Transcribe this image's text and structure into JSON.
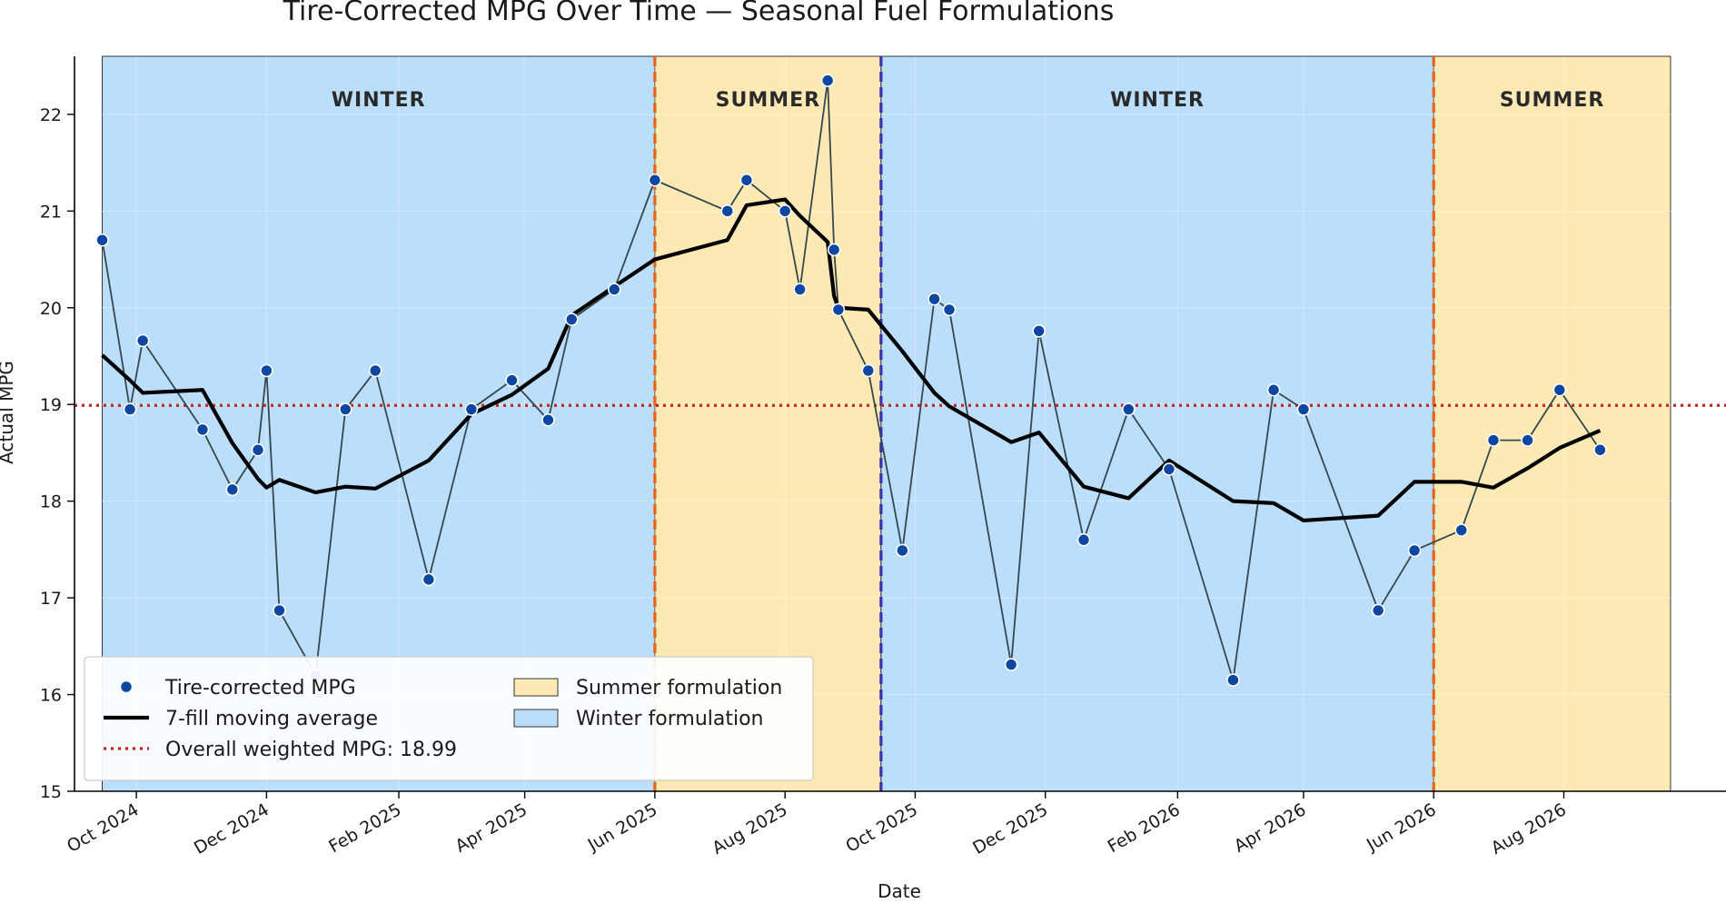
{
  "chart_data": {
    "type": "line",
    "title": "Tire-Corrected MPG Over Time — Seasonal Fuel Formulations",
    "xlabel": "Date",
    "ylabel": "Actual MPG",
    "xlim": [
      "2024-09-02",
      "2026-10-16"
    ],
    "ylim": [
      15,
      22.6
    ],
    "yticks": [
      15,
      16,
      17,
      18,
      19,
      20,
      21,
      22
    ],
    "xticks": [
      {
        "date": "2024-10-01",
        "label": "Oct 2024"
      },
      {
        "date": "2024-12-01",
        "label": "Dec 2024"
      },
      {
        "date": "2025-02-01",
        "label": "Feb 2025"
      },
      {
        "date": "2025-04-01",
        "label": "Apr 2025"
      },
      {
        "date": "2025-06-01",
        "label": "Jun 2025"
      },
      {
        "date": "2025-08-01",
        "label": "Aug 2025"
      },
      {
        "date": "2025-10-01",
        "label": "Oct 2025"
      },
      {
        "date": "2025-12-01",
        "label": "Dec 2025"
      },
      {
        "date": "2026-02-01",
        "label": "Feb 2026"
      },
      {
        "date": "2026-04-01",
        "label": "Apr 2026"
      },
      {
        "date": "2026-06-01",
        "label": "Jun 2026"
      },
      {
        "date": "2026-08-01",
        "label": "Aug 2026"
      }
    ],
    "grid": true,
    "legend_position": "lower-left",
    "seasons": [
      {
        "label": "WINTER",
        "type": "winter",
        "start": "2024-09-15",
        "end": "2025-06-01"
      },
      {
        "label": "SUMMER",
        "type": "summer",
        "start": "2025-06-01",
        "end": "2025-09-15"
      },
      {
        "label": "WINTER",
        "type": "winter",
        "start": "2025-09-15",
        "end": "2026-06-01"
      },
      {
        "label": "SUMMER",
        "type": "summer",
        "start": "2026-06-01",
        "end": "2026-09-20"
      }
    ],
    "boundaries": [
      {
        "date": "2025-06-01",
        "color": "#e8631a"
      },
      {
        "date": "2025-09-15",
        "color": "#3a2fb0"
      },
      {
        "date": "2026-06-01",
        "color": "#e8631a"
      }
    ],
    "reference_line": {
      "value": 18.99,
      "color": "#cc2222"
    },
    "series": [
      {
        "name": "Tire-corrected MPG",
        "style": "markers",
        "color": "#0d47a1",
        "points": [
          [
            "2024-09-15",
            20.7
          ],
          [
            "2024-09-28",
            18.95
          ],
          [
            "2024-10-04",
            19.66
          ],
          [
            "2024-11-01",
            18.74
          ],
          [
            "2024-11-15",
            18.12
          ],
          [
            "2024-11-27",
            18.53
          ],
          [
            "2024-12-01",
            19.35
          ],
          [
            "2024-12-07",
            16.87
          ],
          [
            "2024-12-24",
            16.2
          ],
          [
            "2025-01-07",
            18.95
          ],
          [
            "2025-01-21",
            19.35
          ],
          [
            "2025-02-15",
            17.19
          ],
          [
            "2025-03-07",
            18.95
          ],
          [
            "2025-03-26",
            19.25
          ],
          [
            "2025-04-12",
            18.84
          ],
          [
            "2025-04-23",
            19.88
          ],
          [
            "2025-05-13",
            20.19
          ],
          [
            "2025-06-01",
            21.32
          ],
          [
            "2025-07-05",
            21.0
          ],
          [
            "2025-07-14",
            21.32
          ],
          [
            "2025-08-01",
            21.0
          ],
          [
            "2025-08-08",
            20.19
          ],
          [
            "2025-08-21",
            22.35
          ],
          [
            "2025-08-24",
            20.6
          ],
          [
            "2025-08-26",
            19.98
          ],
          [
            "2025-09-09",
            19.35
          ],
          [
            "2025-09-25",
            17.49
          ],
          [
            "2025-10-10",
            20.09
          ],
          [
            "2025-10-17",
            19.98
          ],
          [
            "2025-11-15",
            16.31
          ],
          [
            "2025-11-28",
            19.76
          ],
          [
            "2025-12-19",
            17.6
          ],
          [
            "2026-01-09",
            18.95
          ],
          [
            "2026-01-28",
            18.33
          ],
          [
            "2026-02-27",
            16.15
          ],
          [
            "2026-03-18",
            19.15
          ],
          [
            "2026-04-01",
            18.95
          ],
          [
            "2026-05-06",
            16.87
          ],
          [
            "2026-05-23",
            17.49
          ],
          [
            "2026-06-14",
            17.7
          ],
          [
            "2026-06-29",
            18.63
          ],
          [
            "2026-07-15",
            18.63
          ],
          [
            "2026-07-30",
            19.15
          ],
          [
            "2026-08-18",
            18.53
          ]
        ]
      },
      {
        "name": "7-fill moving average",
        "style": "line",
        "color": "#000000",
        "points": [
          [
            "2024-09-15",
            19.51
          ],
          [
            "2024-09-28",
            19.25
          ],
          [
            "2024-10-04",
            19.12
          ],
          [
            "2024-11-01",
            19.15
          ],
          [
            "2024-11-15",
            18.6
          ],
          [
            "2024-11-27",
            18.23
          ],
          [
            "2024-12-01",
            18.14
          ],
          [
            "2024-12-07",
            18.22
          ],
          [
            "2024-12-24",
            18.09
          ],
          [
            "2025-01-07",
            18.15
          ],
          [
            "2025-01-21",
            18.13
          ],
          [
            "2025-02-15",
            18.42
          ],
          [
            "2025-03-07",
            18.9
          ],
          [
            "2025-03-26",
            19.1
          ],
          [
            "2025-04-12",
            19.37
          ],
          [
            "2025-04-23",
            19.92
          ],
          [
            "2025-05-13",
            20.22
          ],
          [
            "2025-06-01",
            20.5
          ],
          [
            "2025-07-05",
            20.7
          ],
          [
            "2025-07-14",
            21.06
          ],
          [
            "2025-08-01",
            21.12
          ],
          [
            "2025-08-08",
            20.95
          ],
          [
            "2025-08-21",
            20.68
          ],
          [
            "2025-08-24",
            20.12
          ],
          [
            "2025-08-26",
            20.0
          ],
          [
            "2025-09-09",
            19.98
          ],
          [
            "2025-09-25",
            19.55
          ],
          [
            "2025-10-10",
            19.12
          ],
          [
            "2025-10-17",
            18.98
          ],
          [
            "2025-11-15",
            18.61
          ],
          [
            "2025-11-28",
            18.71
          ],
          [
            "2025-12-19",
            18.15
          ],
          [
            "2026-01-09",
            18.03
          ],
          [
            "2026-01-28",
            18.42
          ],
          [
            "2026-02-27",
            18.0
          ],
          [
            "2026-03-18",
            17.98
          ],
          [
            "2026-04-01",
            17.8
          ],
          [
            "2026-05-06",
            17.85
          ],
          [
            "2026-05-23",
            18.2
          ],
          [
            "2026-06-14",
            18.2
          ],
          [
            "2026-06-29",
            18.14
          ],
          [
            "2026-07-15",
            18.34
          ],
          [
            "2026-07-30",
            18.55
          ],
          [
            "2026-08-18",
            18.73
          ]
        ]
      }
    ],
    "legend": [
      {
        "label": "Tire-corrected MPG",
        "kind": "marker",
        "color": "#0d47a1"
      },
      {
        "label": "7-fill moving average",
        "kind": "line",
        "color": "#000000"
      },
      {
        "label": "Overall weighted MPG: 18.99",
        "kind": "dotted",
        "color": "#cc2222"
      },
      {
        "label": "Summer formulation",
        "kind": "patch",
        "color": "#fde9b3"
      },
      {
        "label": "Winter formulation",
        "kind": "patch",
        "color": "#bbdefb"
      }
    ],
    "colors": {
      "winter_fill": "#bbdefb",
      "summer_fill": "#fde9b3",
      "marker": "#0d47a1",
      "connector": "#37474f",
      "moving_average": "#000000"
    }
  }
}
